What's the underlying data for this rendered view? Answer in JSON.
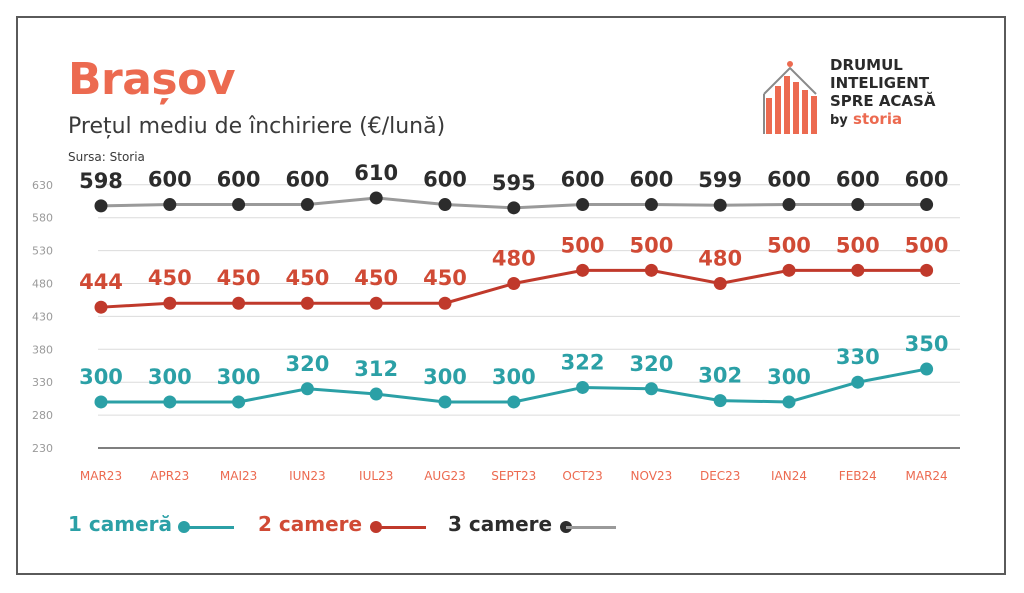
{
  "header": {
    "title": "Brașov",
    "subtitle": "Prețul mediu de închiriere (€/lună)",
    "source": "Sursa: Storia"
  },
  "logo": {
    "line1": "DRUMUL",
    "line2": "INTELIGENT",
    "line3": "SPRE ACASĂ",
    "by": "by",
    "brand": "storia",
    "accent_color": "#ec6a50"
  },
  "chart_data": {
    "type": "line",
    "categories": [
      "MAR23",
      "APR23",
      "MAI23",
      "IUN23",
      "IUL23",
      "AUG23",
      "SEPT23",
      "OCT23",
      "NOV23",
      "DEC23",
      "IAN24",
      "FEB24",
      "MAR24"
    ],
    "yticks": [
      230,
      280,
      330,
      380,
      430,
      480,
      530,
      580,
      630
    ],
    "ylim": [
      230,
      650
    ],
    "grid": true,
    "legend_position": "bottom-left",
    "series": [
      {
        "name": "1 cameră",
        "color": "#2ba0a6",
        "values": [
          300,
          300,
          300,
          320,
          312,
          300,
          300,
          322,
          320,
          302,
          300,
          330,
          350
        ]
      },
      {
        "name": "2 camere",
        "color": "#c0392b",
        "values": [
          444,
          450,
          450,
          450,
          450,
          450,
          480,
          500,
          500,
          480,
          500,
          500,
          500
        ]
      },
      {
        "name": "3 camere",
        "color": "#2c2c2c",
        "values": [
          598,
          600,
          600,
          600,
          610,
          600,
          595,
          600,
          600,
          599,
          600,
          600,
          600
        ]
      }
    ],
    "line_colors": [
      "#2ba0a6",
      "#c0392b",
      "#9a9a9a"
    ],
    "label_colors": [
      "#2ba0a6",
      "#d04a35",
      "#2c2c2c"
    ]
  }
}
